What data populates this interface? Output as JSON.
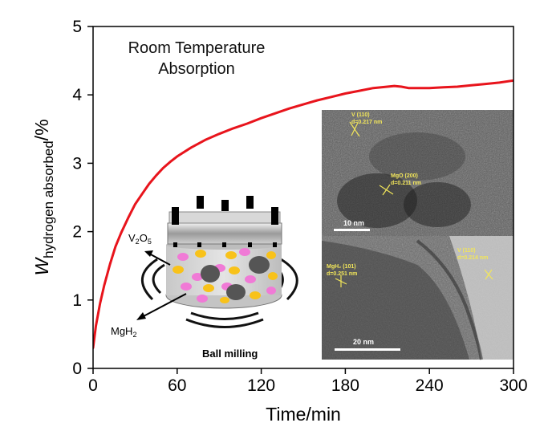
{
  "chart_data": {
    "type": "line",
    "title": "",
    "xlabel": "Time/min",
    "ylabel_main": "W",
    "ylabel_sub": "hydrogen absorbed",
    "ylabel_suffix": "/%",
    "xlim": [
      0,
      300
    ],
    "ylim": [
      0,
      5
    ],
    "xticks": [
      0,
      60,
      120,
      180,
      240,
      300
    ],
    "yticks": [
      0,
      1,
      2,
      3,
      4,
      5
    ],
    "grid": false,
    "annotation_line1": "Room Temperature",
    "annotation_line2": "Absorption",
    "series": [
      {
        "color": "#e8141c",
        "x": [
          0,
          2,
          5,
          8,
          12,
          16,
          20,
          25,
          30,
          35,
          40,
          45,
          50,
          55,
          60,
          70,
          80,
          90,
          100,
          110,
          120,
          130,
          140,
          150,
          160,
          170,
          180,
          190,
          200,
          210,
          215,
          220,
          225,
          230,
          240,
          250,
          260,
          270,
          280,
          290,
          300
        ],
        "y": [
          0.3,
          0.62,
          0.95,
          1.22,
          1.52,
          1.78,
          1.98,
          2.2,
          2.4,
          2.55,
          2.7,
          2.82,
          2.93,
          3.02,
          3.1,
          3.23,
          3.34,
          3.43,
          3.51,
          3.58,
          3.66,
          3.73,
          3.8,
          3.86,
          3.92,
          3.97,
          4.02,
          4.06,
          4.1,
          4.12,
          4.13,
          4.12,
          4.1,
          4.1,
          4.1,
          4.11,
          4.12,
          4.14,
          4.16,
          4.18,
          4.21
        ]
      }
    ]
  },
  "inset": {
    "v2o5_main": "V",
    "v2o5_sub1": "2",
    "v2o5_mid": "O",
    "v2o5_sub2": "5",
    "mgh2_main": "MgH",
    "mgh2_sub": "2",
    "caption": "Ball milling",
    "particle_pink": "#f07ad6",
    "particle_yellow": "#f8c21a",
    "particle_dark": "#555555"
  },
  "tem": {
    "label_v110_top": "V (110)",
    "label_v110_top_d": "d=0.217 nm",
    "label_mgo": "MgO (200)",
    "label_mgo_d": "d=0.211 nm",
    "label_mgh2": "MgH₂ (101)",
    "label_mgh2_d": "d=0.251 nm",
    "label_v110_right": "V (110)",
    "label_v110_right_d": "d=0.214 nm",
    "scale_top": "10 nm",
    "scale_bottom": "20 nm"
  }
}
